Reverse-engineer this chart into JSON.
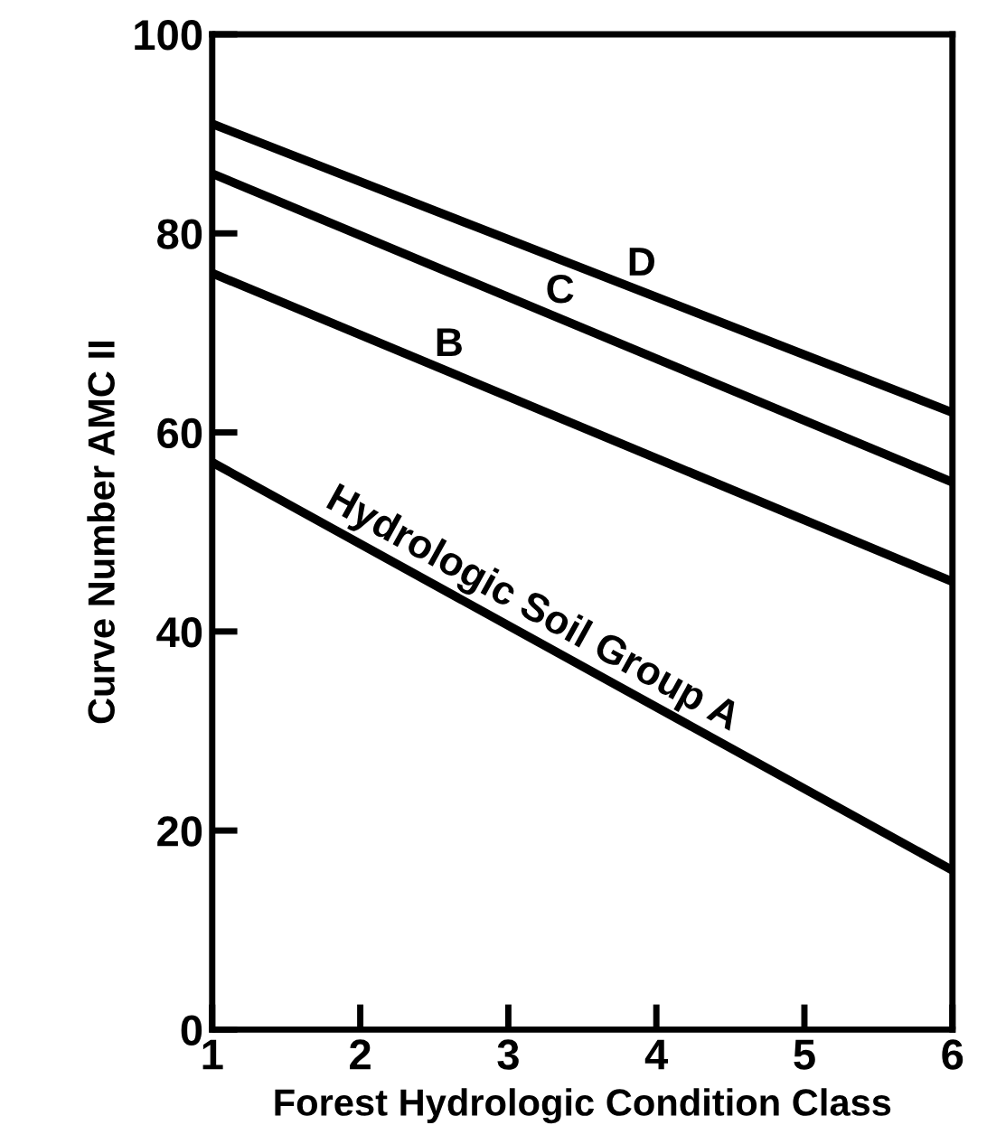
{
  "chart_data": {
    "type": "line",
    "xlabel": "Forest Hydrologic Condition Class",
    "ylabel": "Curve Number AMC II",
    "x": [
      1,
      6
    ],
    "series": [
      {
        "name": "D",
        "color": "#000000",
        "values": [
          91,
          62
        ]
      },
      {
        "name": "C",
        "color": "#000000",
        "values": [
          86,
          55
        ]
      },
      {
        "name": "B",
        "color": "#000000",
        "values": [
          76,
          45
        ]
      },
      {
        "name": "Hydrologic Soil Group A",
        "color": "#000000",
        "values": [
          57,
          16
        ]
      }
    ],
    "xlim": [
      1,
      6
    ],
    "xticks": [
      1,
      2,
      3,
      4,
      5,
      6
    ],
    "ylim": [
      0,
      100
    ],
    "yticks": [
      0,
      20,
      40,
      60,
      80,
      100
    ],
    "grid": false,
    "legend": false,
    "marker": "none",
    "line_style": "solid"
  }
}
